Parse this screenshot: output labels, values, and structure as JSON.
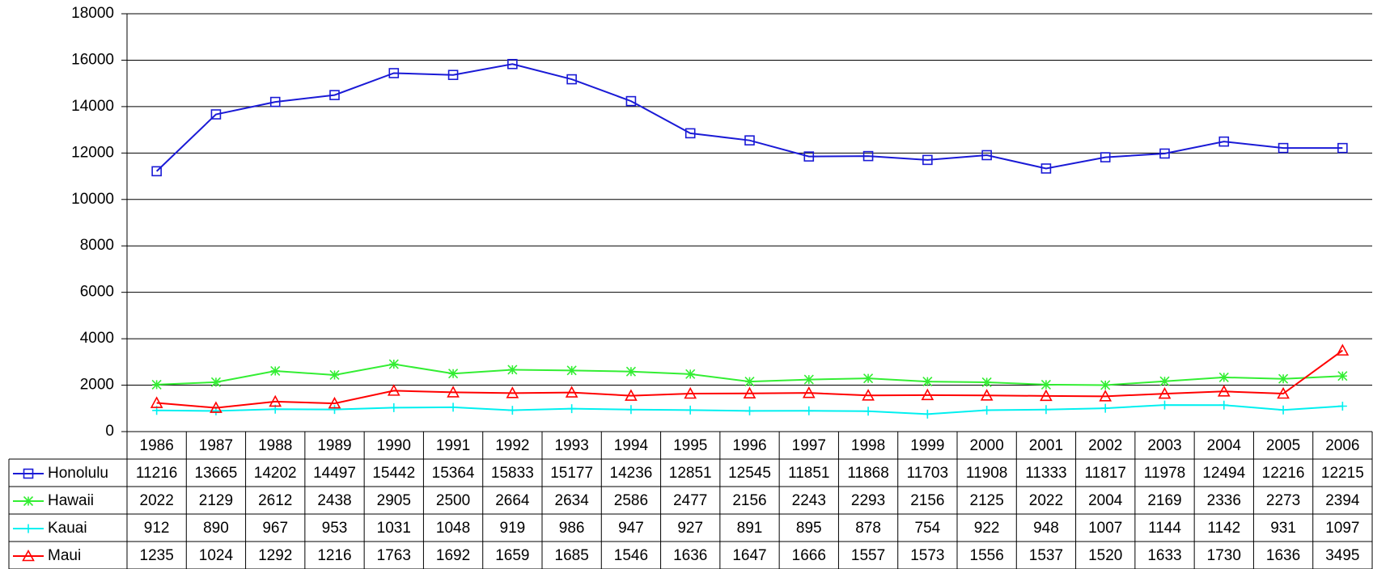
{
  "chart_data": {
    "type": "line",
    "categories": [
      "1986",
      "1987",
      "1988",
      "1989",
      "1990",
      "1991",
      "1992",
      "1993",
      "1994",
      "1995",
      "1996",
      "1997",
      "1998",
      "1999",
      "2000",
      "2001",
      "2002",
      "2003",
      "2004",
      "2005",
      "2006"
    ],
    "series": [
      {
        "name": "Honolulu",
        "color": "#1a1ad6",
        "marker": "square",
        "values": [
          11216,
          13665,
          14202,
          14497,
          15442,
          15364,
          15833,
          15177,
          14236,
          12851,
          12545,
          11851,
          11868,
          11703,
          11908,
          11333,
          11817,
          11978,
          12494,
          12216,
          12215
        ]
      },
      {
        "name": "Hawaii",
        "color": "#33ee33",
        "marker": "asterisk",
        "values": [
          2022,
          2129,
          2612,
          2438,
          2905,
          2500,
          2664,
          2634,
          2586,
          2477,
          2156,
          2243,
          2293,
          2156,
          2125,
          2022,
          2004,
          2169,
          2336,
          2273,
          2394
        ]
      },
      {
        "name": "Kauai",
        "color": "#00f0f0",
        "marker": "plus",
        "values": [
          912,
          890,
          967,
          953,
          1031,
          1048,
          919,
          986,
          947,
          927,
          891,
          895,
          878,
          754,
          922,
          948,
          1007,
          1144,
          1142,
          931,
          1097
        ]
      },
      {
        "name": "Maui",
        "color": "#ff0000",
        "marker": "triangle",
        "values": [
          1235,
          1024,
          1292,
          1216,
          1763,
          1692,
          1659,
          1685,
          1546,
          1636,
          1647,
          1666,
          1557,
          1573,
          1556,
          1537,
          1520,
          1633,
          1730,
          1636,
          3495
        ]
      }
    ],
    "ylim": [
      0,
      18000
    ],
    "yticks": [
      0,
      2000,
      4000,
      6000,
      8000,
      10000,
      12000,
      14000,
      16000,
      18000
    ],
    "grid": true,
    "legend": "data-table"
  }
}
